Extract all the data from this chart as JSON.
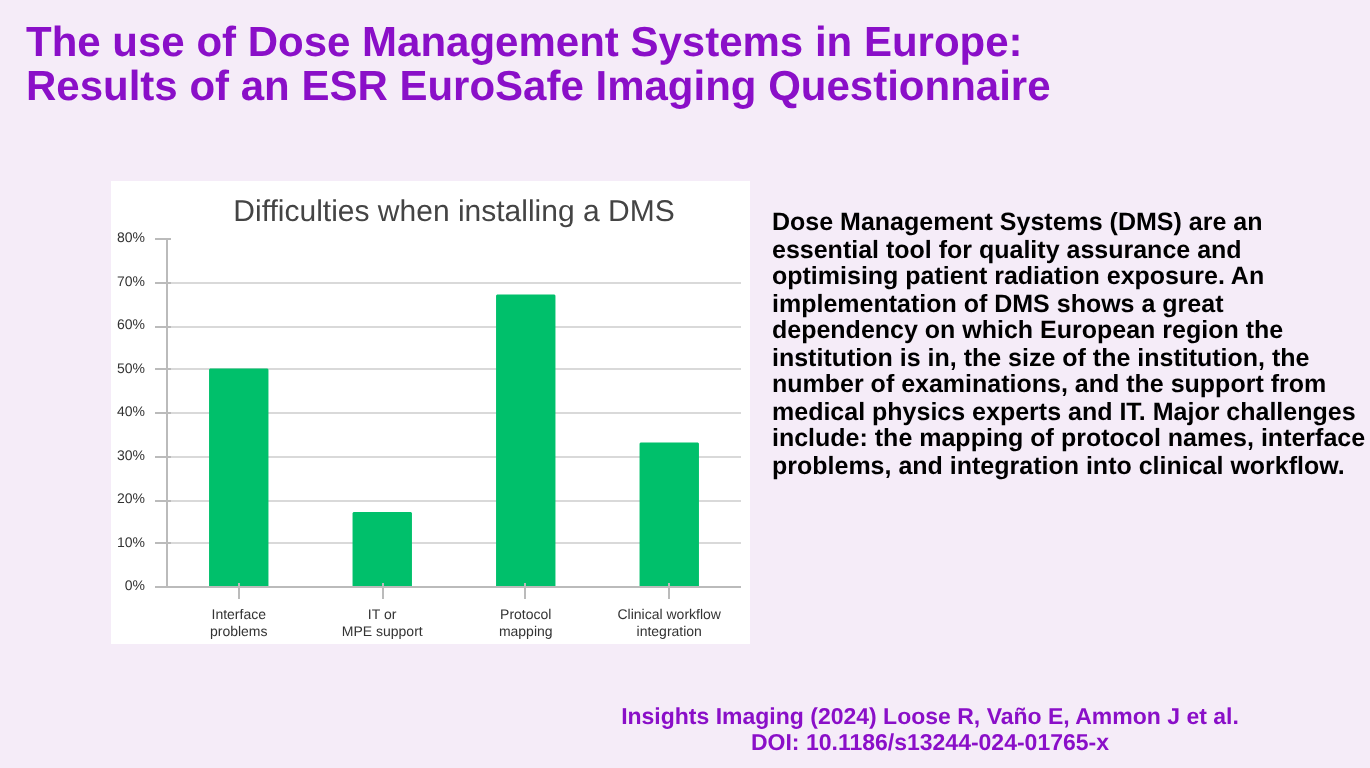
{
  "chart_data": {
    "type": "bar",
    "title": "Difficulties when installing a DMS",
    "categories": [
      "Interface problems",
      "IT or MPE support",
      "Protocol mapping",
      "Clinical workflow integration"
    ],
    "values": [
      50,
      17,
      67,
      33
    ],
    "color": "#00c06b",
    "ylim": [
      0,
      80
    ],
    "yticks": [
      {
        "value": 0,
        "label": "0%"
      },
      {
        "value": 10,
        "label": "10%"
      },
      {
        "value": 20,
        "label": "20%"
      },
      {
        "value": 30,
        "label": "30%"
      },
      {
        "value": 40,
        "label": "40%"
      },
      {
        "value": 50,
        "label": "50%"
      },
      {
        "value": 60,
        "label": "60%"
      },
      {
        "value": 70,
        "label": "70%"
      },
      {
        "value": 80,
        "label": "80%"
      }
    ],
    "grid": "y",
    "annotations": [
      "The use of Dose Management Systems in Europe: Results of an ESR EuroSafe Imaging Questionnaire",
      "Dose Management Systems (DMS) are an essential tool for quality assurance and optimising patient radiation exposure. An implementation of DMS shows a great dependency on which European region the institution is in, the size of the institution, the number of examinations, and the support from medical physics experts and IT. Major challenges include: the mapping of protocol names, interface problems, and integration into clinical workflow.",
      "Insights Imaging (2024) Loose R, Vaño E, Ammon J et al.",
      "DOI: 10.1186/s13244-024-01765-x"
    ]
  }
}
